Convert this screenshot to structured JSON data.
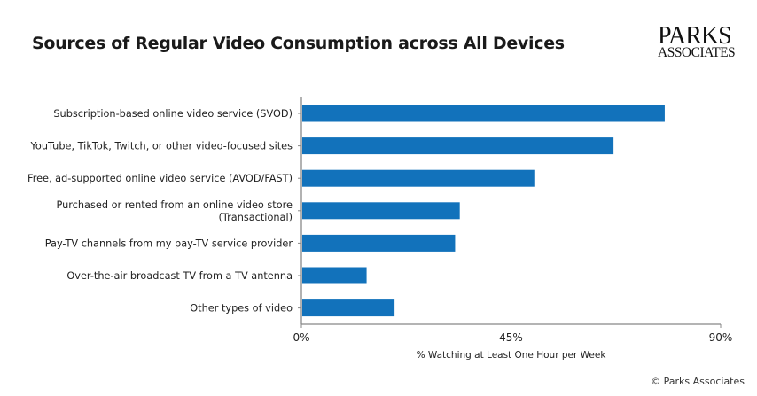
{
  "chart_data": {
    "type": "bar",
    "orientation": "horizontal",
    "title": "Sources of Regular Video Consumption across All Devices",
    "xlabel": "% Watching at Least One Hour per Week",
    "ylabel": "",
    "categories": [
      [
        "Subscription-based online video service (SVOD)"
      ],
      [
        "YouTube, TikTok, Twitch, or other video-focused sites"
      ],
      [
        "Free, ad-supported online video service (AVOD/FAST)"
      ],
      [
        "Purchased or rented from an online video store",
        "(Transactional)"
      ],
      [
        "Pay-TV channels from my pay-TV service provider"
      ],
      [
        "Over-the-air broadcast TV from a TV antenna"
      ],
      [
        "Other types of video"
      ]
    ],
    "values": [
      78,
      67,
      50,
      34,
      33,
      14,
      20
    ],
    "xlim": [
      0,
      90
    ],
    "xticks": [
      "0%",
      "45%",
      "90%"
    ],
    "xtick_values": [
      0,
      45,
      90
    ],
    "grid": false,
    "bar_color": "#1272bb"
  },
  "branding": {
    "logo_line1": "PARKS",
    "logo_line2": "ASSOCIATES",
    "copyright": "© Parks Associates"
  }
}
